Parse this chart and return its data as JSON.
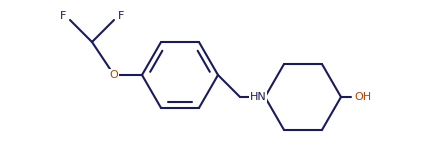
{
  "bg_color": "#ffffff",
  "line_color": "#1a1a5e",
  "atom_color_N": "#1a1a5e",
  "atom_color_O": "#b84000",
  "atom_color_F": "#1a1a5e",
  "line_width": 1.5,
  "figsize": [
    4.24,
    1.5
  ],
  "dpi": 100,
  "xlim": [
    0.0,
    4.24
  ],
  "ylim": [
    0.0,
    1.5
  ]
}
